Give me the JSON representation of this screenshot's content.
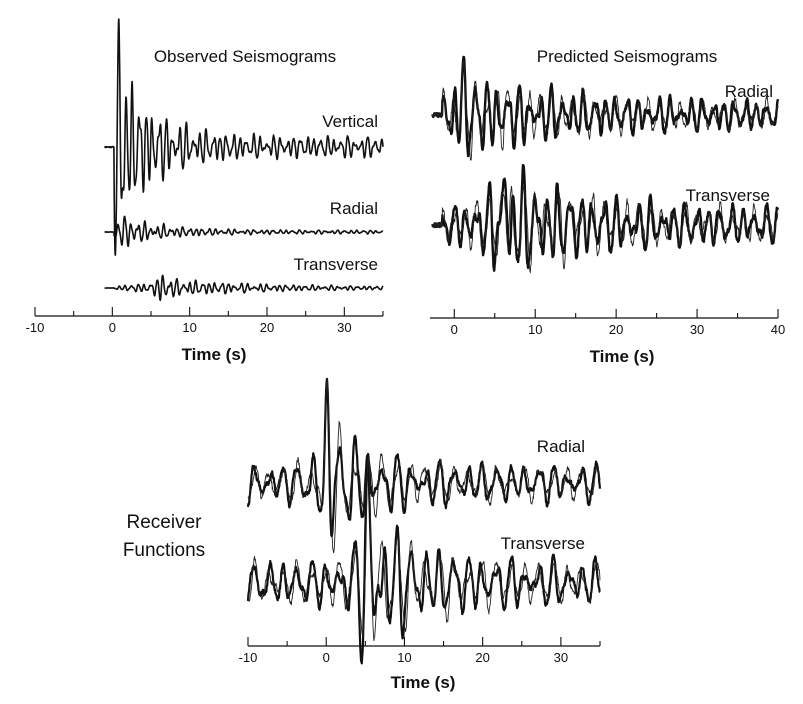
{
  "chart_data": [
    {
      "type": "line",
      "title": "Observed Seismograms",
      "xlabel": "Time (s)",
      "xlim": [
        -10,
        35
      ],
      "x_ticks": [
        -10,
        0,
        10,
        20,
        30
      ],
      "x_tick_labels": [
        "-10",
        "0",
        "10",
        "20",
        "30"
      ],
      "traces": [
        {
          "name": "Vertical",
          "amp": 1.0,
          "decay": 0.22,
          "freq": 1.15,
          "onset": 0.2,
          "peak_at": 0.8,
          "noise": 0.01,
          "coda": 0.12,
          "seed": 11
        },
        {
          "name": "Radial",
          "amp": 0.42,
          "decay": 0.18,
          "freq": 1.2,
          "onset": 0.2,
          "peak_at": 1.5,
          "noise": 0.01,
          "coda": 0.12,
          "seed": 23
        },
        {
          "name": "Transverse",
          "amp": 0.35,
          "decay": 0.08,
          "freq": 1.2,
          "onset": 0.2,
          "peak_at": 6.5,
          "noise": 0.01,
          "coda": 0.1,
          "seed": 37
        }
      ]
    },
    {
      "type": "line",
      "title": "Predicted Seismograms",
      "xlabel": "Time (s)",
      "xlim": [
        -3,
        40
      ],
      "x_ticks": [
        0,
        10,
        20,
        30,
        40
      ],
      "x_tick_labels": [
        "0",
        "10",
        "20",
        "30",
        "40"
      ],
      "traces": [
        {
          "name": "Radial",
          "amp": 1.0,
          "decay": 0.08,
          "freq": 0.75,
          "onset": -1.5,
          "peak_at": 1.0,
          "noise": 0.08,
          "coda": 0.32,
          "seed": 41,
          "overlay": true
        },
        {
          "name": "Transverse",
          "amp": 1.2,
          "decay": 0.1,
          "freq": 0.7,
          "onset": -1.5,
          "peak_at": 6.2,
          "noise": 0.08,
          "coda": 0.3,
          "seed": 53,
          "overlay": true
        }
      ]
    },
    {
      "type": "line",
      "title": "",
      "side_label": [
        "Receiver",
        "Functions"
      ],
      "xlabel": "Time (s)",
      "xlim": [
        -10,
        35
      ],
      "x_ticks": [
        -10,
        0,
        10,
        20,
        30
      ],
      "x_tick_labels": [
        "-10",
        "0",
        "10",
        "20",
        "30"
      ],
      "traces": [
        {
          "name": "Radial",
          "amp": 1.0,
          "decay": 0.18,
          "freq": 0.55,
          "onset": -10,
          "peak_at": 0.2,
          "noise": 0.05,
          "coda": 0.28,
          "seed": 67,
          "overlay": true
        },
        {
          "name": "Transverse",
          "amp": 1.1,
          "decay": 0.15,
          "freq": 0.55,
          "onset": -10,
          "peak_at": 5.3,
          "noise": 0.05,
          "coda": 0.28,
          "seed": 79,
          "overlay": true
        }
      ]
    }
  ]
}
